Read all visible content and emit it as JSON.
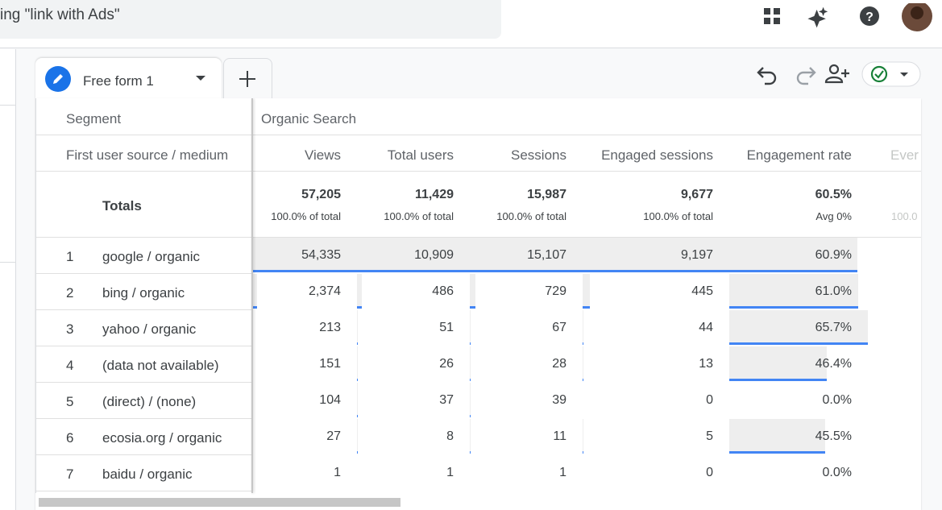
{
  "header": {
    "search": "ing \"link with Ads\""
  },
  "tabs": {
    "active": "Free form 1"
  },
  "table": {
    "segment_label": "Segment",
    "segment": "Organic Search",
    "dimension": "First user source / medium",
    "columns": [
      "Views",
      "Total users",
      "Sessions",
      "Engaged sessions",
      "Engagement rate",
      "Ever"
    ],
    "totals": {
      "label": "Totals",
      "values": [
        "57,205",
        "11,429",
        "15,987",
        "9,677",
        "60.5%"
      ],
      "notes": [
        "100.0% of total",
        "100.0% of total",
        "100.0% of total",
        "100.0% of total",
        "Avg 0%",
        "100.0"
      ]
    },
    "rows": [
      {
        "rank": 1,
        "name": "google / organic",
        "values": [
          "54,335",
          "10,909",
          "15,107",
          "9,197",
          "60.9%"
        ]
      },
      {
        "rank": 2,
        "name": "bing / organic",
        "values": [
          "2,374",
          "486",
          "729",
          "445",
          "61.0%"
        ]
      },
      {
        "rank": 3,
        "name": "yahoo / organic",
        "values": [
          "213",
          "51",
          "67",
          "44",
          "65.7%"
        ]
      },
      {
        "rank": 4,
        "name": "(data not available)",
        "values": [
          "151",
          "26",
          "28",
          "13",
          "46.4%"
        ]
      },
      {
        "rank": 5,
        "name": "(direct) / (none)",
        "values": [
          "104",
          "37",
          "39",
          "0",
          "0.0%"
        ]
      },
      {
        "rank": 6,
        "name": "ecosia.org / organic",
        "values": [
          "27",
          "8",
          "11",
          "5",
          "45.5%"
        ]
      },
      {
        "rank": 7,
        "name": "baidu / organic",
        "values": [
          "1",
          "1",
          "1",
          "0",
          "0.0%"
        ]
      }
    ]
  }
}
